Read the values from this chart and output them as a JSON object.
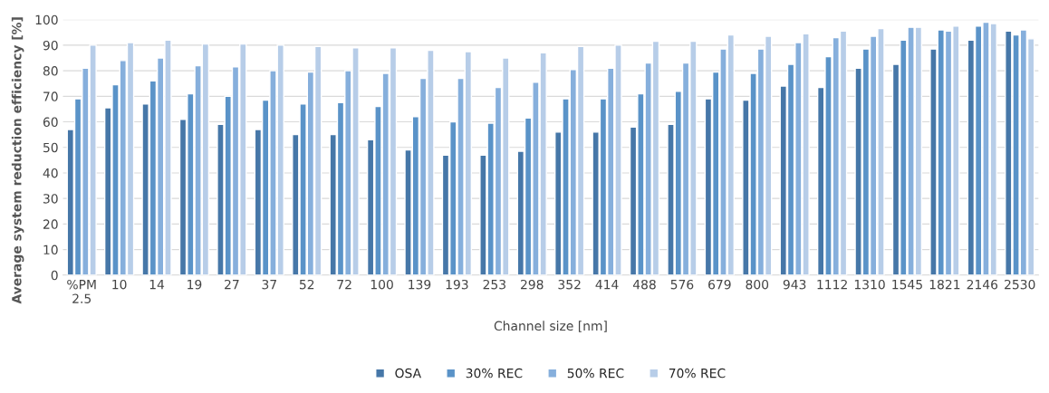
{
  "chart_data": {
    "type": "bar",
    "xlabel": "Channel size [nm]",
    "ylabel": "Average system reduction efficiency [%]",
    "categories": [
      "%PM\n2.5",
      "10",
      "14",
      "19",
      "27",
      "37",
      "52",
      "72",
      "100",
      "139",
      "193",
      "253",
      "298",
      "352",
      "414",
      "488",
      "576",
      "679",
      "800",
      "943",
      "1112",
      "1310",
      "1545",
      "1821",
      "2146",
      "2530"
    ],
    "series": [
      {
        "name": "OSA",
        "color": "#4677a8",
        "values": [
          57,
          65.5,
          67,
          61,
          59,
          57,
          55,
          55,
          53,
          49,
          47,
          47,
          48.5,
          56,
          56,
          58,
          59,
          69,
          68.5,
          74,
          73.5,
          81,
          82.5,
          88.5,
          92,
          95.5
        ]
      },
      {
        "name": "30% REC",
        "color": "#5a93c8",
        "values": [
          69,
          74.5,
          76,
          71,
          70,
          68.5,
          67,
          67.5,
          66,
          62,
          60,
          59.5,
          61.5,
          69,
          69,
          71,
          72,
          79.5,
          79,
          82.5,
          85.5,
          88.5,
          92,
          96,
          97.5,
          94
        ]
      },
      {
        "name": "50% REC",
        "color": "#86afdc",
        "values": [
          81,
          84,
          85,
          82,
          81.5,
          80,
          79.5,
          80,
          79,
          77,
          77,
          73.5,
          75.5,
          80.5,
          81,
          83,
          83,
          88.5,
          88.5,
          91,
          93,
          93.5,
          97,
          95.5,
          99,
          96
        ]
      },
      {
        "name": "70% REC",
        "color": "#b7cde8",
        "values": [
          90,
          91,
          92,
          90.5,
          90.5,
          90,
          89.5,
          89,
          89,
          88,
          87.5,
          85,
          87,
          89.5,
          90,
          91.5,
          91.5,
          94,
          93.5,
          94.5,
          95.5,
          96.5,
          97,
          97.5,
          98.5,
          92.5
        ]
      }
    ],
    "ylim": [
      0,
      100
    ],
    "yticks": [
      0,
      10,
      20,
      30,
      40,
      50,
      60,
      70,
      80,
      90,
      100
    ],
    "grid": "y",
    "legend": "bottom"
  }
}
